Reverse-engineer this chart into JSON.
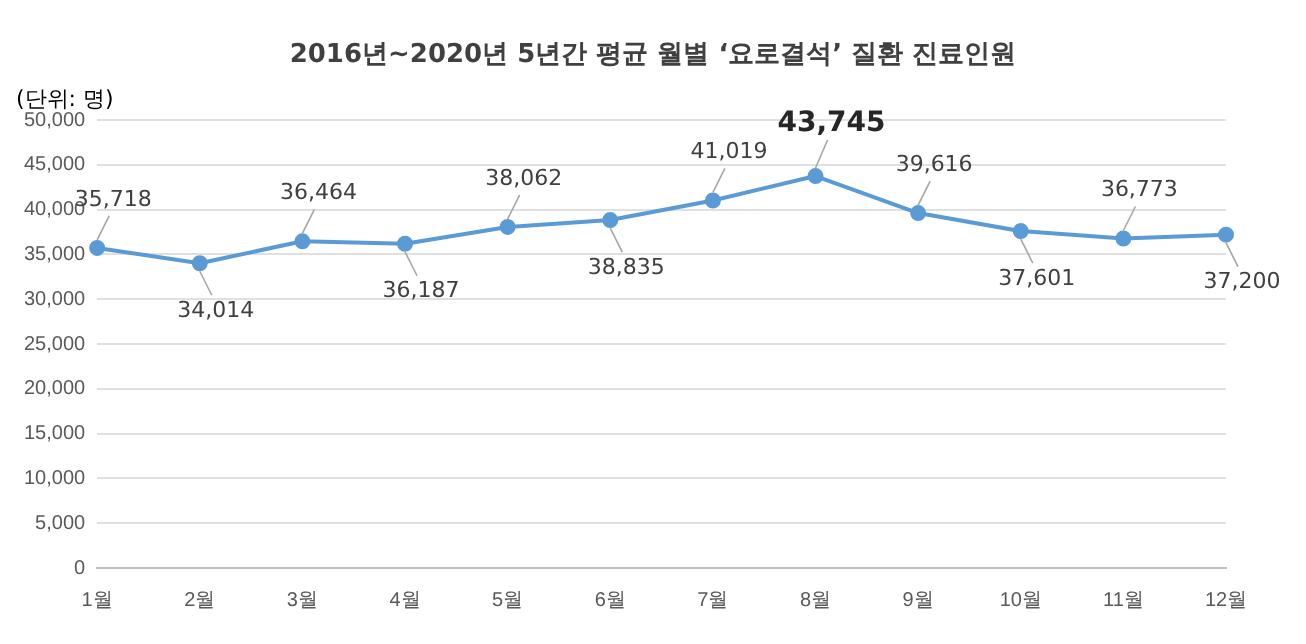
{
  "chart_data": {
    "type": "line",
    "title": "2016년~2020년 5년간 평균 월별 ‘요로결석’ 질환 진료인원",
    "ylabel": "(단위: 명)",
    "categories": [
      "1월",
      "2월",
      "3월",
      "4월",
      "5월",
      "6월",
      "7월",
      "8월",
      "9월",
      "10월",
      "11월",
      "12월"
    ],
    "series": [
      {
        "color": "#5b9bd5",
        "values": [
          35718,
          34014,
          36464,
          36187,
          38062,
          38835,
          41019,
          43745,
          39616,
          37601,
          36773,
          37200
        ],
        "value_labels": [
          "35,718",
          "34,014",
          "36,464",
          "36,187",
          "38,062",
          "38,835",
          "41,019",
          "43,745",
          "39,616",
          "37,601",
          "36,773",
          "37,200"
        ]
      }
    ],
    "ylim": [
      0,
      50000
    ],
    "yticks": [
      0,
      {
        "value": 5000,
        "label": "5,000"
      },
      {
        "value": 10000,
        "label": "10,000"
      },
      {
        "value": 15000,
        "label": "15,000"
      },
      {
        "value": 20000,
        "label": "20,000"
      },
      {
        "value": 25000,
        "label": "25,000"
      },
      {
        "value": 30000,
        "label": "30,000"
      },
      {
        "value": 35000,
        "label": "35,000"
      },
      {
        "value": 40000,
        "label": "40,000"
      },
      {
        "value": 45000,
        "label": "45,000"
      },
      {
        "value": 50000,
        "label": "50,000"
      }
    ],
    "grid": "y",
    "legend": false,
    "marker": "circle",
    "line_style": "solid"
  }
}
